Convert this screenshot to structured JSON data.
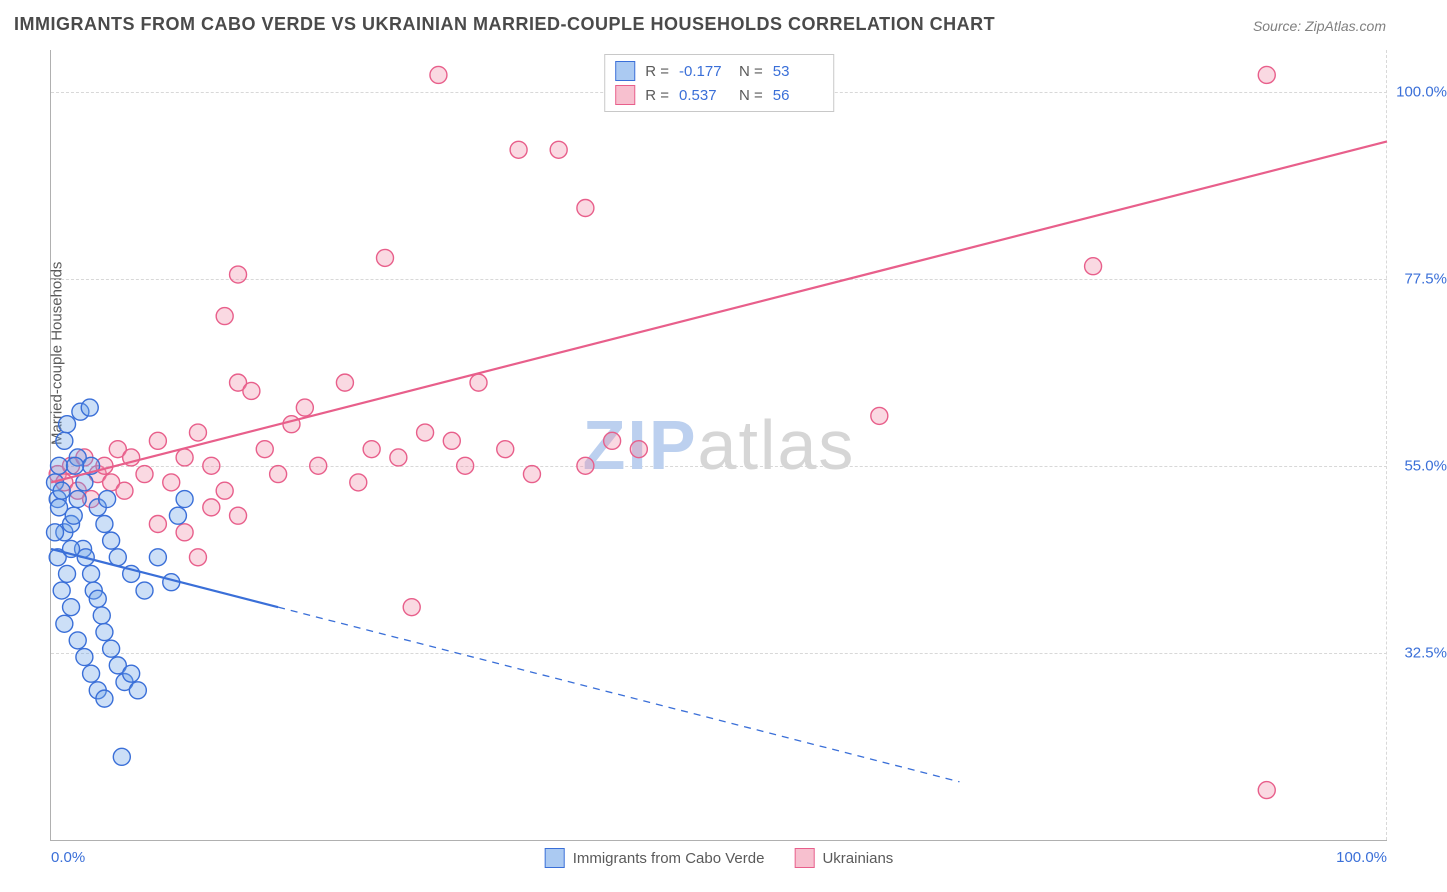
{
  "title": "IMMIGRANTS FROM CABO VERDE VS UKRAINIAN MARRIED-COUPLE HOUSEHOLDS CORRELATION CHART",
  "source": "Source: ZipAtlas.com",
  "ylabel": "Married-couple Households",
  "watermark_a": "ZIP",
  "watermark_b": "atlas",
  "chart": {
    "type": "scatter",
    "background_color": "#ffffff",
    "grid_color": "#d8d8d8",
    "axis_color": "#b0b0b0",
    "tick_label_color": "#3a6fd8",
    "text_color": "#5a5a5a",
    "title_fontsize": 18,
    "label_fontsize": 15,
    "tick_fontsize": 15,
    "marker_radius": 8.5,
    "marker_fill_opacity": 0.35,
    "marker_stroke_width": 1.4,
    "trend_line_width": 2.2,
    "xlim": [
      0,
      100
    ],
    "ylim": [
      10,
      105
    ],
    "y_ticks": [
      {
        "v": 32.5,
        "label": "32.5%"
      },
      {
        "v": 55.0,
        "label": "55.0%"
      },
      {
        "v": 77.5,
        "label": "77.5%"
      },
      {
        "v": 100.0,
        "label": "100.0%"
      }
    ],
    "x_ticks": [
      {
        "v": 0,
        "label": "0.0%"
      },
      {
        "v": 100,
        "label": "100.0%"
      }
    ],
    "legend_top": [
      {
        "series": "a",
        "r_label": "R =",
        "r": "-0.177",
        "n_label": "N =",
        "n": "53"
      },
      {
        "series": "b",
        "r_label": "R =",
        "r": "0.537",
        "n_label": "N =",
        "n": "56"
      }
    ],
    "series": {
      "a": {
        "label": "Immigrants from Cabo Verde",
        "fill": "#6ca4e8",
        "stroke": "#3a6fd8",
        "trend": {
          "x1": 0,
          "y1": 45,
          "x2": 17,
          "y2": 38,
          "dash_x2": 68,
          "dash_y2": 17
        },
        "points": [
          [
            0.3,
            53
          ],
          [
            0.5,
            51
          ],
          [
            0.6,
            50
          ],
          [
            0.8,
            52
          ],
          [
            1.0,
            58
          ],
          [
            1.2,
            60
          ],
          [
            1.0,
            47
          ],
          [
            1.5,
            48
          ],
          [
            1.7,
            49
          ],
          [
            2.0,
            56
          ],
          [
            2.2,
            61.5
          ],
          [
            2.9,
            62
          ],
          [
            2.4,
            45
          ],
          [
            2.6,
            44
          ],
          [
            3.0,
            42
          ],
          [
            3.2,
            40
          ],
          [
            3.5,
            39
          ],
          [
            3.8,
            37
          ],
          [
            4.0,
            35
          ],
          [
            4.5,
            33
          ],
          [
            5.0,
            31
          ],
          [
            5.5,
            29
          ],
          [
            6.0,
            30
          ],
          [
            6.5,
            28
          ],
          [
            2.0,
            51
          ],
          [
            2.5,
            53
          ],
          [
            3.0,
            55
          ],
          [
            3.5,
            50
          ],
          [
            4.0,
            48
          ],
          [
            4.5,
            46
          ],
          [
            5.0,
            44
          ],
          [
            6.0,
            42
          ],
          [
            7.0,
            40
          ],
          [
            8.0,
            44
          ],
          [
            9.0,
            41
          ],
          [
            9.5,
            49
          ],
          [
            10,
            51
          ],
          [
            1.0,
            36
          ],
          [
            1.5,
            38
          ],
          [
            2.0,
            34
          ],
          [
            2.5,
            32
          ],
          [
            3.0,
            30
          ],
          [
            3.5,
            28
          ],
          [
            4.0,
            27
          ],
          [
            5.3,
            20
          ],
          [
            0.5,
            44
          ],
          [
            0.8,
            40
          ],
          [
            1.2,
            42
          ],
          [
            1.5,
            45
          ],
          [
            0.3,
            47
          ],
          [
            0.6,
            55
          ],
          [
            1.8,
            55
          ],
          [
            4.2,
            51
          ]
        ]
      },
      "b": {
        "label": "Ukrainians",
        "fill": "#f191ad",
        "stroke": "#e85f8b",
        "trend": {
          "x1": 0,
          "y1": 53,
          "x2": 100,
          "y2": 94
        },
        "points": [
          [
            0.5,
            54
          ],
          [
            1.0,
            53
          ],
          [
            1.5,
            55
          ],
          [
            2.0,
            52
          ],
          [
            2.5,
            56
          ],
          [
            3.0,
            51
          ],
          [
            3.5,
            54
          ],
          [
            4.0,
            55
          ],
          [
            4.5,
            53
          ],
          [
            5.0,
            57
          ],
          [
            5.5,
            52
          ],
          [
            6.0,
            56
          ],
          [
            7.0,
            54
          ],
          [
            8.0,
            58
          ],
          [
            9.0,
            53
          ],
          [
            10,
            56
          ],
          [
            11,
            59
          ],
          [
            12,
            55
          ],
          [
            13,
            52
          ],
          [
            14,
            65
          ],
          [
            15,
            64
          ],
          [
            16,
            57
          ],
          [
            17,
            54
          ],
          [
            18,
            60
          ],
          [
            19,
            62
          ],
          [
            20,
            55
          ],
          [
            22,
            65
          ],
          [
            23,
            53
          ],
          [
            24,
            57
          ],
          [
            25,
            80
          ],
          [
            26,
            56
          ],
          [
            28,
            59
          ],
          [
            30,
            58
          ],
          [
            32,
            65
          ],
          [
            34,
            57
          ],
          [
            29,
            102
          ],
          [
            35,
            93
          ],
          [
            38,
            93
          ],
          [
            40,
            55
          ],
          [
            42,
            58
          ],
          [
            44,
            57
          ],
          [
            27,
            38
          ],
          [
            40,
            86
          ],
          [
            13,
            73
          ],
          [
            14,
            78
          ],
          [
            62,
            61
          ],
          [
            78,
            79
          ],
          [
            91,
            102
          ],
          [
            91,
            16
          ],
          [
            8,
            48
          ],
          [
            10,
            47
          ],
          [
            12,
            50
          ],
          [
            14,
            49
          ],
          [
            11,
            44
          ],
          [
            31,
            55
          ],
          [
            36,
            54
          ]
        ]
      }
    }
  }
}
